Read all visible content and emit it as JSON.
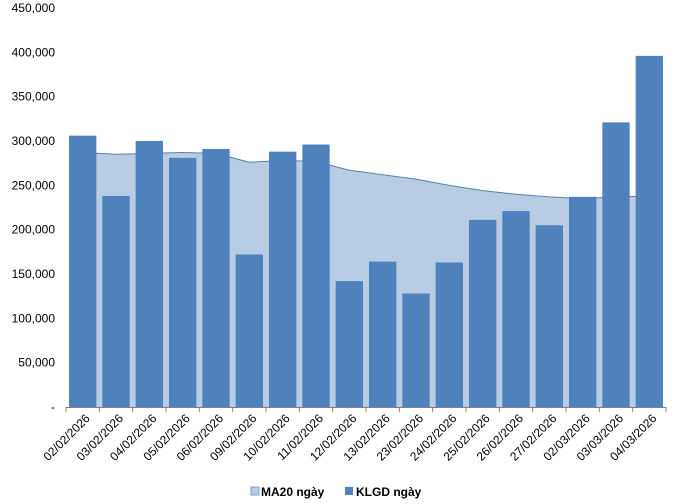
{
  "chart_data": {
    "type": "bar",
    "categories": [
      "02/02/2026",
      "03/02/2026",
      "04/02/2026",
      "05/02/2026",
      "06/02/2026",
      "09/02/2026",
      "10/02/2026",
      "11/02/2026",
      "12/02/2026",
      "13/02/2026",
      "23/02/2026",
      "24/02/2026",
      "25/02/2026",
      "26/02/2026",
      "27/02/2026",
      "02/03/2026",
      "03/03/2026",
      "04/03/2026"
    ],
    "y_ticks": [
      "-",
      "50,000",
      "100,000",
      "150,000",
      "200,000",
      "250,000",
      "300,000",
      "350,000",
      "400,000",
      "450,000"
    ],
    "ylim": [
      0,
      450000
    ],
    "grid": false,
    "legend_position": "bottom",
    "series": [
      {
        "name": "MA20 ngày",
        "type": "area",
        "color": "#b8cce4",
        "values": [
          287000,
          285000,
          286000,
          287000,
          286000,
          276000,
          278000,
          277000,
          267000,
          262000,
          257000,
          250000,
          244000,
          240000,
          237000,
          235000,
          237000,
          238000
        ]
      },
      {
        "name": "KLGD ngày",
        "type": "bar",
        "color": "#4f81bd",
        "values": [
          306000,
          238000,
          300000,
          281000,
          291000,
          172000,
          288000,
          296000,
          142000,
          164000,
          128000,
          163000,
          211000,
          221000,
          205000,
          237000,
          321000,
          396000
        ]
      }
    ]
  }
}
